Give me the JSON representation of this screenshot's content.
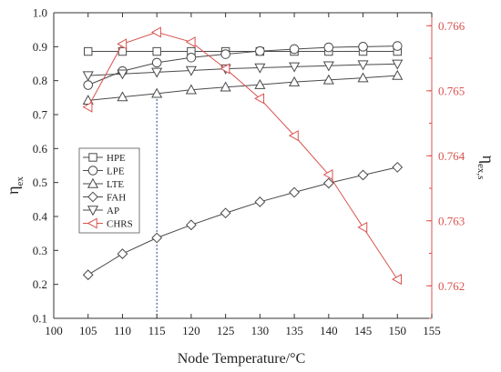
{
  "chart_data": {
    "type": "line",
    "xlabel": "Node Temperature/°C",
    "ylabel_main": "η",
    "ylabel_sub": "ex",
    "ylabel_right_main": "η",
    "ylabel_right_sub": "ex,s",
    "xlim": [
      100,
      155
    ],
    "ylim": [
      0.1,
      1.0
    ],
    "ylim_right": [
      0.7615,
      0.7662
    ],
    "x_ticks": [
      "100",
      "105",
      "110",
      "115",
      "120",
      "125",
      "130",
      "135",
      "140",
      "145",
      "150",
      "155"
    ],
    "y_ticks": [
      "0.1",
      "0.2",
      "0.3",
      "0.4",
      "0.5",
      "0.6",
      "0.7",
      "0.8",
      "0.9",
      "1.0"
    ],
    "y_right_ticks": [
      "0.762",
      "0.763",
      "0.764",
      "0.765",
      "0.766"
    ],
    "x": [
      105,
      110,
      115,
      120,
      125,
      130,
      135,
      140,
      145,
      150
    ],
    "reference_line_x": 115,
    "right_axis_color": "#d9534f",
    "series": [
      {
        "name": "HPE",
        "marker": "square",
        "color": "#4a4a4a",
        "axis": "left",
        "values": [
          0.886,
          0.886,
          0.886,
          0.886,
          0.886,
          0.886,
          0.886,
          0.886,
          0.886,
          0.886
        ]
      },
      {
        "name": "LPE",
        "marker": "circle",
        "color": "#4a4a4a",
        "axis": "left",
        "values": [
          0.787,
          0.828,
          0.853,
          0.868,
          0.878,
          0.887,
          0.893,
          0.898,
          0.9,
          0.902
        ]
      },
      {
        "name": "LTE",
        "marker": "triangle-up",
        "color": "#4a4a4a",
        "axis": "left",
        "values": [
          0.742,
          0.752,
          0.762,
          0.773,
          0.781,
          0.788,
          0.796,
          0.802,
          0.808,
          0.815
        ]
      },
      {
        "name": "FAH",
        "marker": "diamond",
        "color": "#4a4a4a",
        "axis": "left",
        "values": [
          0.228,
          0.29,
          0.337,
          0.375,
          0.41,
          0.443,
          0.471,
          0.498,
          0.522,
          0.545
        ]
      },
      {
        "name": "AP",
        "marker": "triangle-down",
        "color": "#4a4a4a",
        "axis": "left",
        "values": [
          0.815,
          0.82,
          0.825,
          0.83,
          0.835,
          0.838,
          0.841,
          0.844,
          0.847,
          0.849
        ]
      },
      {
        "name": "CHRS",
        "marker": "triangle-left",
        "color": "#d9534f",
        "axis": "right",
        "values": [
          0.76475,
          0.76572,
          0.7659,
          0.76575,
          0.76534,
          0.76488,
          0.76431,
          0.76371,
          0.7629,
          0.7621
        ]
      }
    ]
  }
}
